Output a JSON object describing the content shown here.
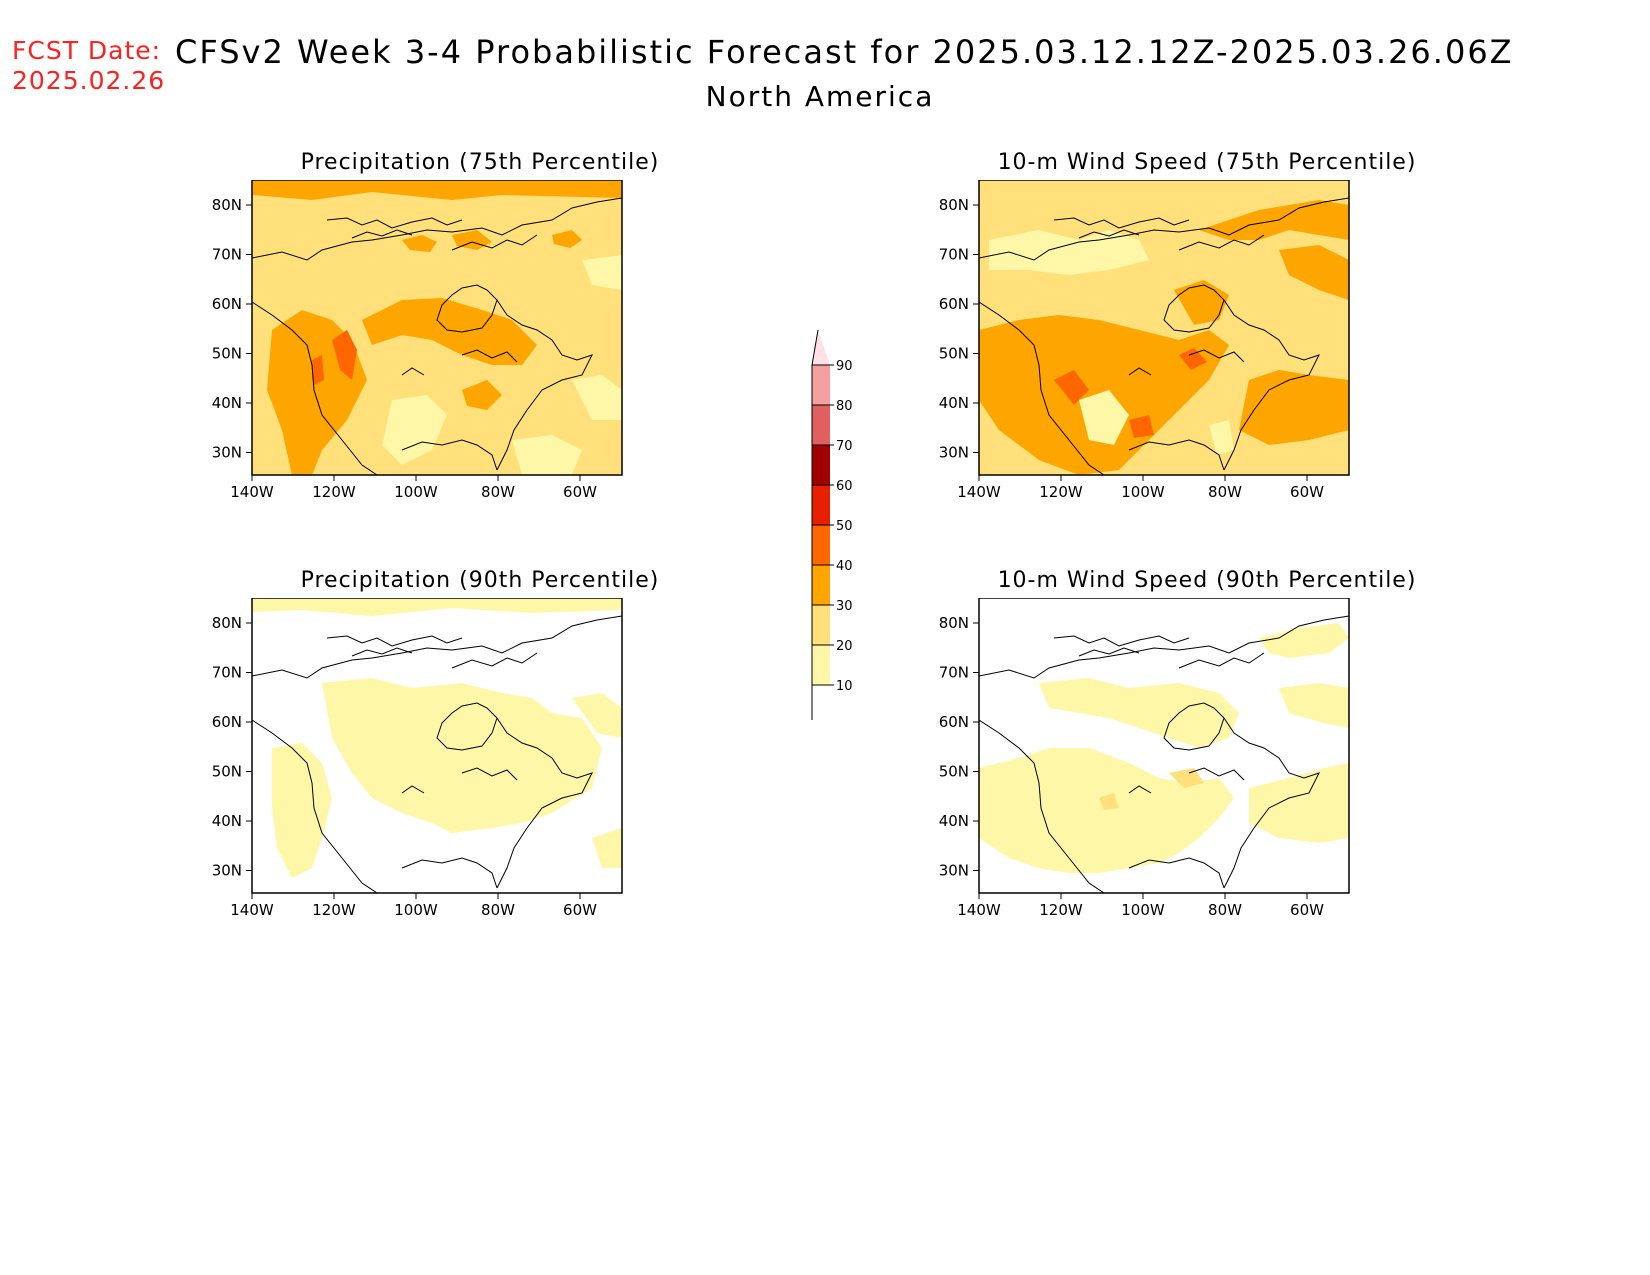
{
  "header": {
    "fcst_label": "FCST Date:",
    "fcst_date": "2025.02.26",
    "title": "CFSv2 Week 3-4 Probabilistic Forecast for 2025.03.12.12Z-2025.03.26.06Z",
    "region": "North America"
  },
  "axes": {
    "lat_ticks": [
      "80N",
      "70N",
      "60N",
      "50N",
      "40N",
      "30N"
    ],
    "lon_ticks": [
      "140W",
      "120W",
      "100W",
      "80W",
      "60W"
    ]
  },
  "panels": [
    {
      "title": "Precipitation (75th Percentile)",
      "level": "high-moderate"
    },
    {
      "title": "10-m Wind Speed (75th Percentile)",
      "level": "high"
    },
    {
      "title": "Precipitation (90th Percentile)",
      "level": "low"
    },
    {
      "title": "10-m Wind Speed (90th Percentile)",
      "level": "low"
    }
  ],
  "colorbar": {
    "levels": [
      "10",
      "20",
      "30",
      "40",
      "50",
      "60",
      "70",
      "80",
      "90"
    ],
    "colors": [
      "#ffffff",
      "#fff7a8",
      "#ffe07a",
      "#ffa500",
      "#ff6600",
      "#e62000",
      "#a00000",
      "#e06060",
      "#f4a0a0",
      "#ffe0e6"
    ]
  }
}
